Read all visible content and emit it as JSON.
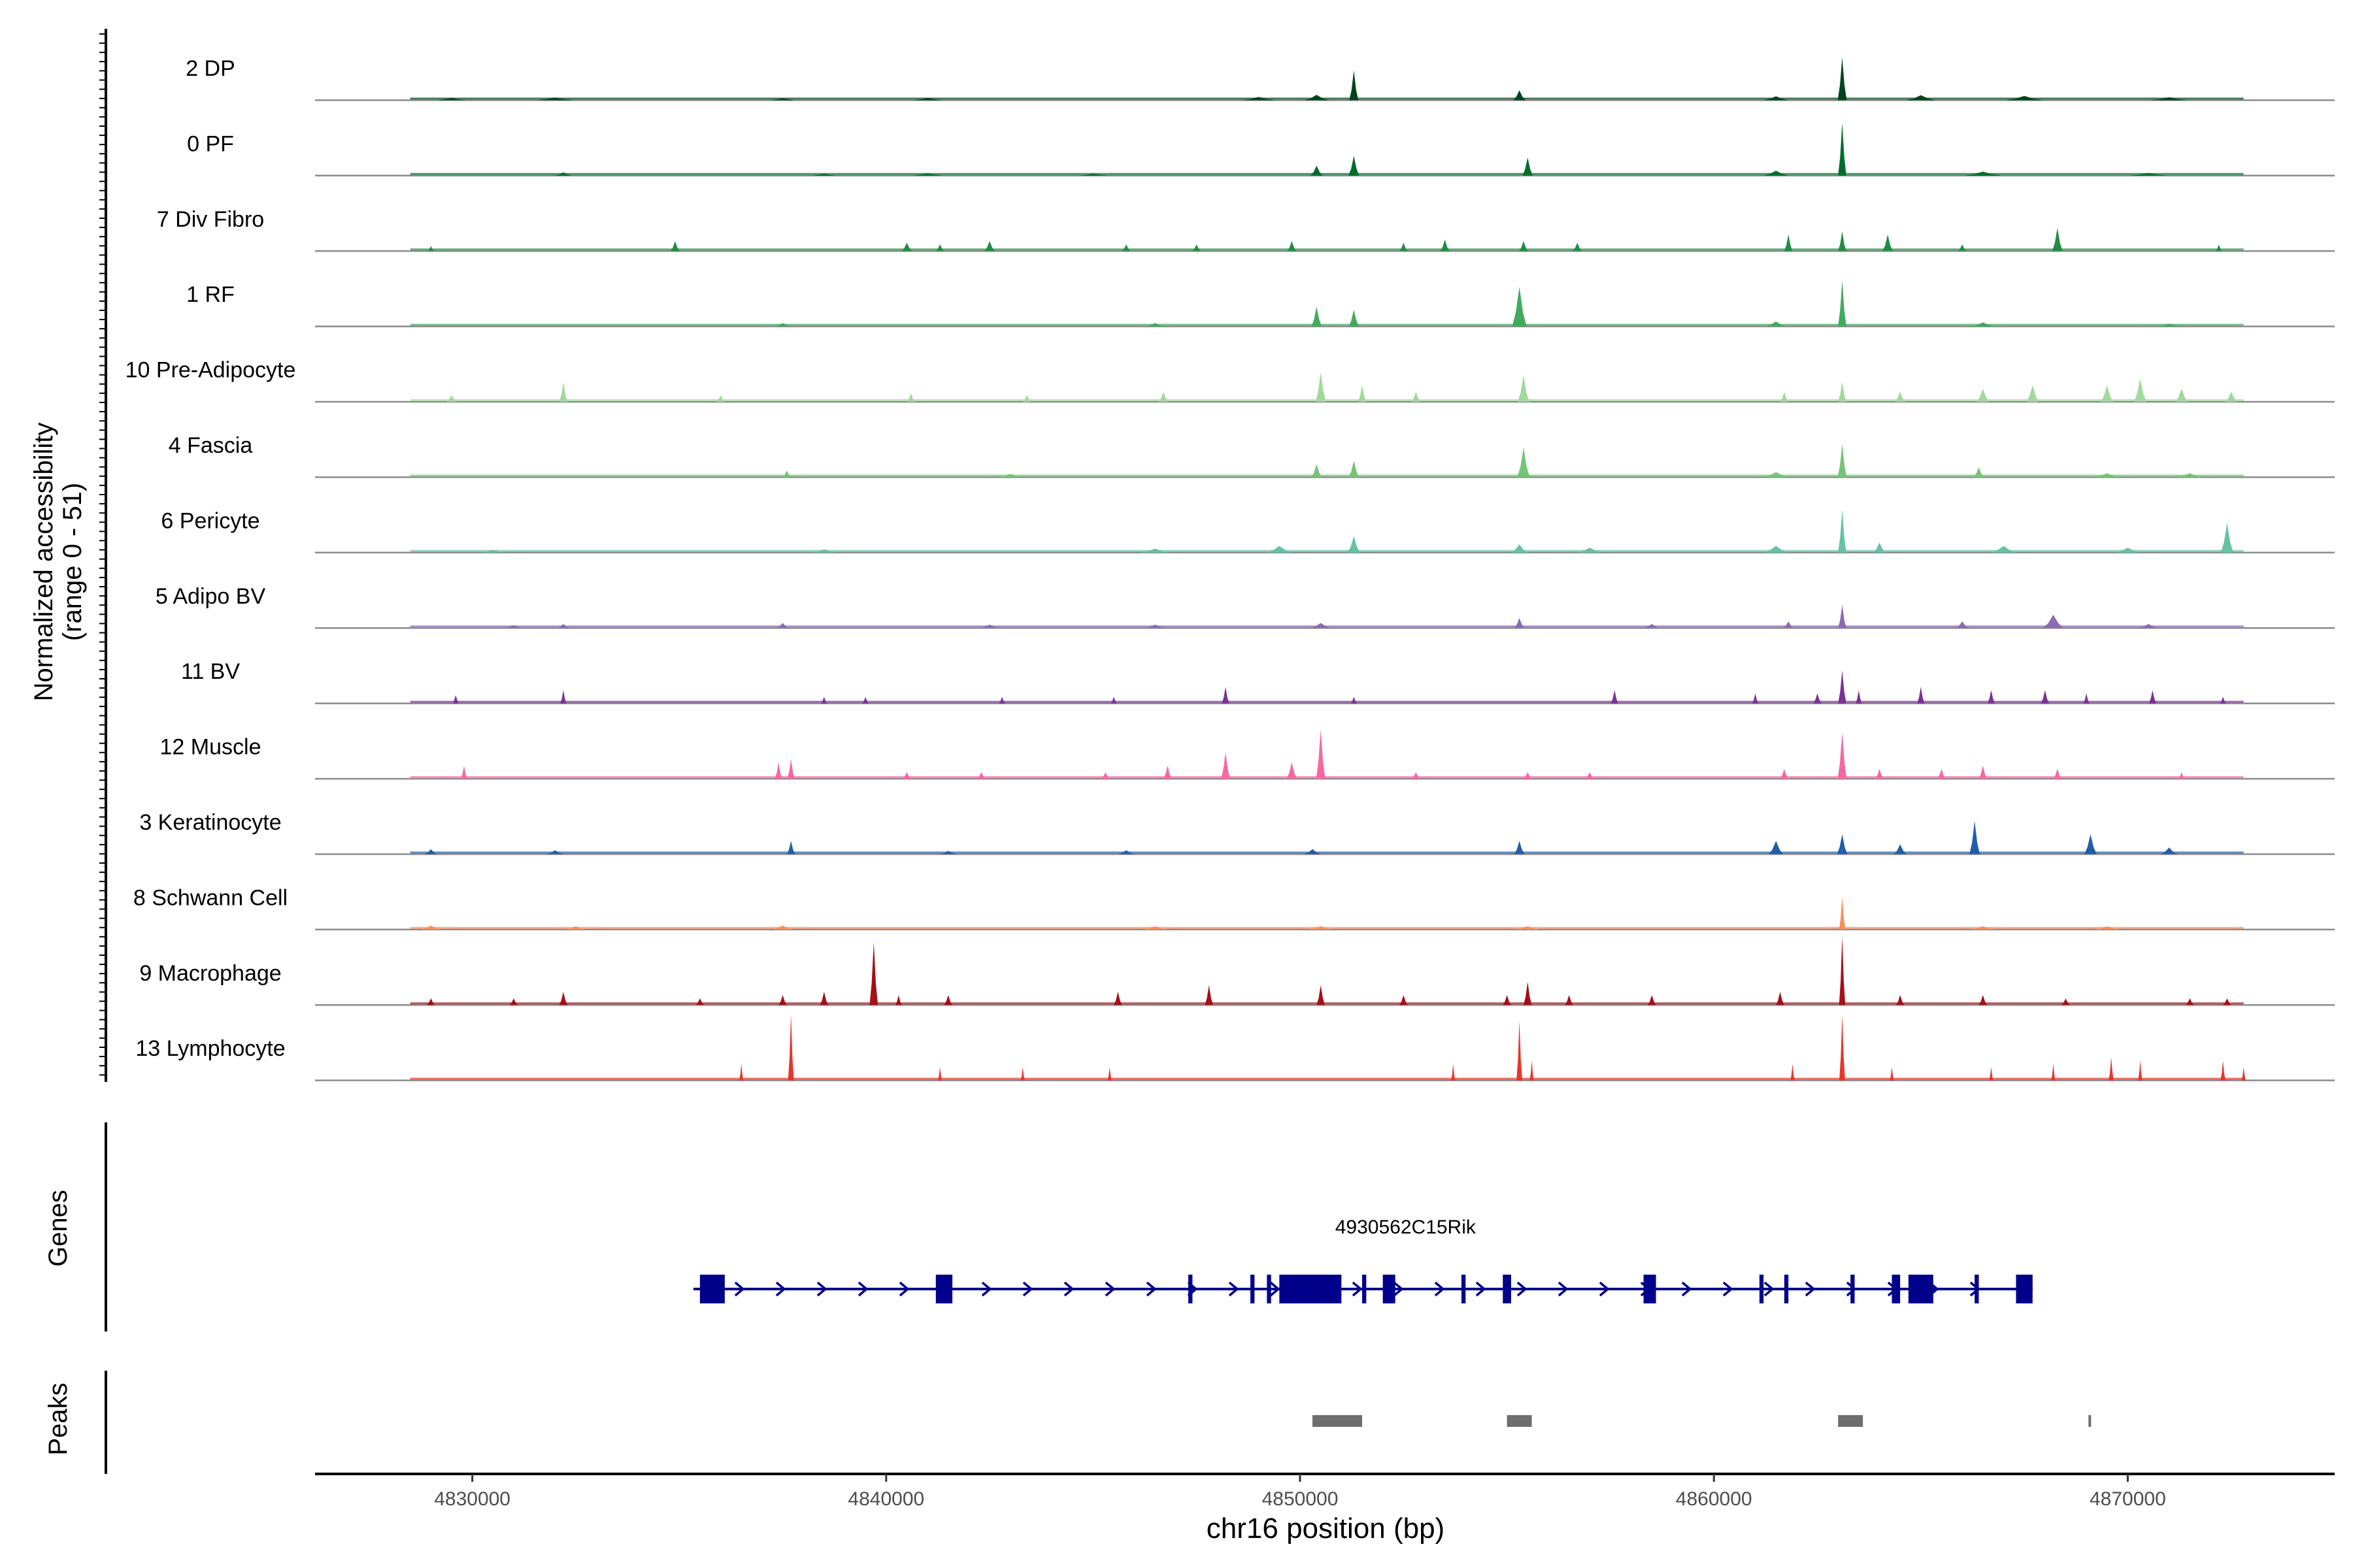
{
  "figure": {
    "y_axis_title_line1": "Normalized accessibility",
    "y_axis_title_line2": "(range 0 - 51)",
    "genes_label": "Genes",
    "peaks_label": "Peaks",
    "x_axis_title": "chr16 position (bp)"
  },
  "chart_data": {
    "type": "area",
    "subtype": "genome-coverage-tracks",
    "xlabel": "chr16 position (bp)",
    "ylabel": "Normalized accessibility (range 0 - 51)",
    "xlim": [
      4826200,
      4875000
    ],
    "ylim": [
      0,
      51
    ],
    "x_ticks": [
      4830000,
      4840000,
      4850000,
      4860000,
      4870000
    ],
    "x_tick_labels": [
      "4830000",
      "4840000",
      "4850000",
      "4860000",
      "4870000"
    ],
    "grid": false,
    "tracks": [
      {
        "name": "2 DP",
        "color": "#00441b",
        "peaks": [
          [
            4829500,
            0.7,
            700
          ],
          [
            4832000,
            0.8,
            900
          ],
          [
            4837500,
            0.6,
            600
          ],
          [
            4841000,
            0.7,
            700
          ],
          [
            4849000,
            1.0,
            800
          ],
          [
            4850400,
            1.6,
            600
          ],
          [
            4851300,
            9,
            220
          ],
          [
            4855300,
            3,
            300
          ],
          [
            4861500,
            1.2,
            600
          ],
          [
            4863100,
            13,
            220
          ],
          [
            4865000,
            1.5,
            700
          ],
          [
            4867500,
            1.3,
            900
          ],
          [
            4871000,
            0.9,
            900
          ]
        ]
      },
      {
        "name": "0 PF",
        "color": "#006d2c",
        "peaks": [
          [
            4832200,
            1.0,
            400
          ],
          [
            4838500,
            0.6,
            600
          ],
          [
            4841000,
            0.7,
            700
          ],
          [
            4845000,
            0.6,
            700
          ],
          [
            4850400,
            3,
            300
          ],
          [
            4851300,
            6,
            260
          ],
          [
            4855500,
            5.5,
            250
          ],
          [
            4861500,
            1.5,
            600
          ],
          [
            4863100,
            16,
            200
          ],
          [
            4866500,
            1.2,
            900
          ],
          [
            4870500,
            0.8,
            900
          ]
        ]
      },
      {
        "name": "7 Div Fibro",
        "color": "#238b45",
        "peaks": [
          [
            4829000,
            1.5,
            150
          ],
          [
            4834900,
            3,
            220
          ],
          [
            4840500,
            2.5,
            250
          ],
          [
            4841300,
            2,
            200
          ],
          [
            4842500,
            3,
            250
          ],
          [
            4845800,
            2,
            200
          ],
          [
            4847500,
            2,
            200
          ],
          [
            4849800,
            3,
            220
          ],
          [
            4852500,
            2.5,
            200
          ],
          [
            4853500,
            3.5,
            220
          ],
          [
            4855400,
            3,
            220
          ],
          [
            4856700,
            2.5,
            220
          ],
          [
            4861800,
            5,
            200
          ],
          [
            4863100,
            6,
            200
          ],
          [
            4864200,
            5,
            250
          ],
          [
            4866000,
            2,
            200
          ],
          [
            4868300,
            7,
            250
          ],
          [
            4872200,
            2,
            150
          ]
        ]
      },
      {
        "name": "1 RF",
        "color": "#41ab5d",
        "peaks": [
          [
            4837500,
            1.0,
            400
          ],
          [
            4846500,
            1.0,
            500
          ],
          [
            4850400,
            6,
            250
          ],
          [
            4851300,
            5,
            250
          ],
          [
            4855300,
            12,
            350
          ],
          [
            4861500,
            1.5,
            500
          ],
          [
            4863100,
            14,
            200
          ],
          [
            4866500,
            1.2,
            600
          ],
          [
            4871000,
            0.8,
            600
          ]
        ]
      },
      {
        "name": "10 Pre-Adipocyte",
        "color": "#a1d99b",
        "peaks": [
          [
            4829500,
            2,
            250
          ],
          [
            4832200,
            6,
            200
          ],
          [
            4836000,
            2,
            200
          ],
          [
            4840600,
            2.5,
            200
          ],
          [
            4843400,
            2,
            200
          ],
          [
            4846700,
            3,
            220
          ],
          [
            4850500,
            9,
            250
          ],
          [
            4851500,
            5,
            200
          ],
          [
            4852800,
            3,
            220
          ],
          [
            4855400,
            8,
            280
          ],
          [
            4861700,
            3,
            200
          ],
          [
            4863100,
            6,
            200
          ],
          [
            4864500,
            3,
            250
          ],
          [
            4866500,
            4,
            300
          ],
          [
            4867700,
            5,
            300
          ],
          [
            4869500,
            5,
            300
          ],
          [
            4870300,
            7,
            300
          ],
          [
            4871300,
            4,
            300
          ],
          [
            4872500,
            3,
            300
          ]
        ]
      },
      {
        "name": "4 Fascia",
        "color": "#74c476",
        "peaks": [
          [
            4837600,
            2,
            200
          ],
          [
            4843000,
            1.0,
            500
          ],
          [
            4850400,
            4,
            250
          ],
          [
            4851300,
            5,
            250
          ],
          [
            4855400,
            9,
            300
          ],
          [
            4861500,
            1.5,
            600
          ],
          [
            4863100,
            10,
            220
          ],
          [
            4866400,
            3,
            250
          ],
          [
            4869500,
            1.2,
            600
          ],
          [
            4871500,
            1.2,
            600
          ]
        ]
      },
      {
        "name": "6 Pericyte",
        "color": "#66c2a4",
        "peaks": [
          [
            4830500,
            0.8,
            600
          ],
          [
            4838500,
            1.0,
            600
          ],
          [
            4846500,
            1.2,
            700
          ],
          [
            4849500,
            2,
            600
          ],
          [
            4851300,
            5,
            300
          ],
          [
            4855300,
            2.5,
            400
          ],
          [
            4857000,
            1.5,
            600
          ],
          [
            4861500,
            2,
            600
          ],
          [
            4863100,
            13,
            200
          ],
          [
            4864000,
            3,
            300
          ],
          [
            4867000,
            2,
            600
          ],
          [
            4870000,
            1.5,
            600
          ],
          [
            4872400,
            9,
            300
          ]
        ]
      },
      {
        "name": "5 Adipo BV",
        "color": "#8c6bb1",
        "peaks": [
          [
            4831000,
            0.8,
            500
          ],
          [
            4832200,
            1.2,
            300
          ],
          [
            4837500,
            1.5,
            300
          ],
          [
            4842500,
            1.0,
            500
          ],
          [
            4846500,
            1.0,
            500
          ],
          [
            4850500,
            1.5,
            500
          ],
          [
            4855300,
            3,
            250
          ],
          [
            4858500,
            1.2,
            400
          ],
          [
            4861800,
            2,
            250
          ],
          [
            4863100,
            7,
            200
          ],
          [
            4866000,
            2,
            300
          ],
          [
            4868200,
            4,
            500
          ],
          [
            4870500,
            1.2,
            500
          ]
        ]
      },
      {
        "name": "11 BV",
        "color": "#7a3394",
        "peaks": [
          [
            4829600,
            2.5,
            150
          ],
          [
            4832200,
            4,
            150
          ],
          [
            4838500,
            2,
            150
          ],
          [
            4839500,
            2,
            150
          ],
          [
            4842800,
            2,
            150
          ],
          [
            4845500,
            2,
            150
          ],
          [
            4848200,
            5,
            180
          ],
          [
            4851300,
            2,
            150
          ],
          [
            4857600,
            4,
            180
          ],
          [
            4861000,
            3,
            150
          ],
          [
            4862500,
            3,
            200
          ],
          [
            4863100,
            10,
            200
          ],
          [
            4863500,
            4,
            150
          ],
          [
            4865000,
            5,
            180
          ],
          [
            4866700,
            4,
            180
          ],
          [
            4868000,
            4,
            200
          ],
          [
            4869000,
            3,
            150
          ],
          [
            4870600,
            4,
            180
          ],
          [
            4872300,
            2,
            150
          ]
        ]
      },
      {
        "name": "12 Muscle",
        "color": "#f768a1",
        "peaks": [
          [
            4829800,
            4,
            150
          ],
          [
            4837400,
            5,
            180
          ],
          [
            4837700,
            6,
            180
          ],
          [
            4840500,
            2,
            200
          ],
          [
            4842300,
            2,
            200
          ],
          [
            4845300,
            2,
            200
          ],
          [
            4846800,
            4,
            200
          ],
          [
            4848200,
            8,
            220
          ],
          [
            4849800,
            5,
            250
          ],
          [
            4850500,
            15,
            220
          ],
          [
            4852800,
            2,
            200
          ],
          [
            4855500,
            2,
            200
          ],
          [
            4857000,
            2,
            200
          ],
          [
            4861700,
            3,
            200
          ],
          [
            4863100,
            14,
            220
          ],
          [
            4864000,
            3,
            200
          ],
          [
            4865500,
            3,
            200
          ],
          [
            4866500,
            4,
            200
          ],
          [
            4868300,
            3,
            200
          ],
          [
            4871300,
            2,
            150
          ]
        ]
      },
      {
        "name": "3 Keratinocyte",
        "color": "#225ea8",
        "peaks": [
          [
            4829000,
            1.5,
            300
          ],
          [
            4832000,
            1.2,
            400
          ],
          [
            4837700,
            4,
            200
          ],
          [
            4841500,
            1.0,
            400
          ],
          [
            4845800,
            1.2,
            400
          ],
          [
            4850300,
            1.5,
            400
          ],
          [
            4855300,
            4,
            250
          ],
          [
            4861500,
            4,
            350
          ],
          [
            4863100,
            6,
            250
          ],
          [
            4864500,
            3,
            300
          ],
          [
            4866300,
            10,
            250
          ],
          [
            4869100,
            6,
            300
          ],
          [
            4871000,
            2,
            400
          ]
        ]
      },
      {
        "name": "8 Schwann Cell",
        "color": "#fc8d59",
        "peaks": [
          [
            4829000,
            1.2,
            500
          ],
          [
            4832500,
            1.0,
            500
          ],
          [
            4837500,
            1.2,
            500
          ],
          [
            4846500,
            1.0,
            600
          ],
          [
            4850500,
            1.0,
            600
          ],
          [
            4855500,
            1.0,
            600
          ],
          [
            4863100,
            10,
            150
          ],
          [
            4866500,
            1.0,
            600
          ],
          [
            4869500,
            1.0,
            600
          ]
        ]
      },
      {
        "name": "9 Macrophage",
        "color": "#a50f15",
        "peaks": [
          [
            4829000,
            2,
            200
          ],
          [
            4831000,
            2,
            200
          ],
          [
            4832200,
            4,
            200
          ],
          [
            4835500,
            2,
            200
          ],
          [
            4837500,
            3,
            200
          ],
          [
            4838500,
            4,
            200
          ],
          [
            4839700,
            19,
            200
          ],
          [
            4840300,
            3,
            150
          ],
          [
            4841500,
            3,
            200
          ],
          [
            4845600,
            4,
            200
          ],
          [
            4847800,
            6,
            200
          ],
          [
            4850500,
            6,
            200
          ],
          [
            4852500,
            3,
            200
          ],
          [
            4855000,
            3,
            200
          ],
          [
            4855500,
            7,
            200
          ],
          [
            4856500,
            3,
            200
          ],
          [
            4858500,
            3,
            200
          ],
          [
            4861600,
            4,
            200
          ],
          [
            4863100,
            30,
            150
          ],
          [
            4864500,
            3,
            200
          ],
          [
            4866500,
            3,
            200
          ],
          [
            4868500,
            2,
            200
          ],
          [
            4871500,
            2,
            200
          ],
          [
            4872400,
            2,
            200
          ]
        ]
      },
      {
        "name": "13 Lymphocyte",
        "color": "#e8352b",
        "peaks": [
          [
            4836500,
            5,
            100
          ],
          [
            4837700,
            20,
            140
          ],
          [
            4841300,
            4,
            100
          ],
          [
            4843300,
            4,
            100
          ],
          [
            4845400,
            4,
            100
          ],
          [
            4853700,
            5,
            100
          ],
          [
            4855300,
            18,
            140
          ],
          [
            4855600,
            6,
            100
          ],
          [
            4861900,
            5,
            100
          ],
          [
            4863100,
            20,
            140
          ],
          [
            4864300,
            4,
            100
          ],
          [
            4866700,
            4,
            100
          ],
          [
            4868200,
            5,
            100
          ],
          [
            4869600,
            7,
            120
          ],
          [
            4870300,
            6,
            100
          ],
          [
            4872300,
            6,
            120
          ],
          [
            4872800,
            4,
            100
          ]
        ]
      }
    ],
    "gene": {
      "name": "4930562C15Rik",
      "strand": "+",
      "start": 4835500,
      "end": 4867700,
      "exons": [
        [
          4835500,
          4836100
        ],
        [
          4841200,
          4841600
        ],
        [
          4847300,
          4847400
        ],
        [
          4848800,
          4848900
        ],
        [
          4849200,
          4849300
        ],
        [
          4849500,
          4851000
        ],
        [
          4851500,
          4851600
        ],
        [
          4852000,
          4852300
        ],
        [
          4853900,
          4854000
        ],
        [
          4854900,
          4855100
        ],
        [
          4858300,
          4858600
        ],
        [
          4861100,
          4861200
        ],
        [
          4861700,
          4861800
        ],
        [
          4863300,
          4863400
        ],
        [
          4864300,
          4864500
        ],
        [
          4864700,
          4865300
        ],
        [
          4866300,
          4866400
        ],
        [
          4867300,
          4867700
        ]
      ]
    },
    "peaks_track": [
      [
        4850300,
        4851500
      ],
      [
        4855000,
        4855600
      ],
      [
        4863000,
        4863600
      ],
      [
        4869050,
        4869100
      ]
    ]
  }
}
